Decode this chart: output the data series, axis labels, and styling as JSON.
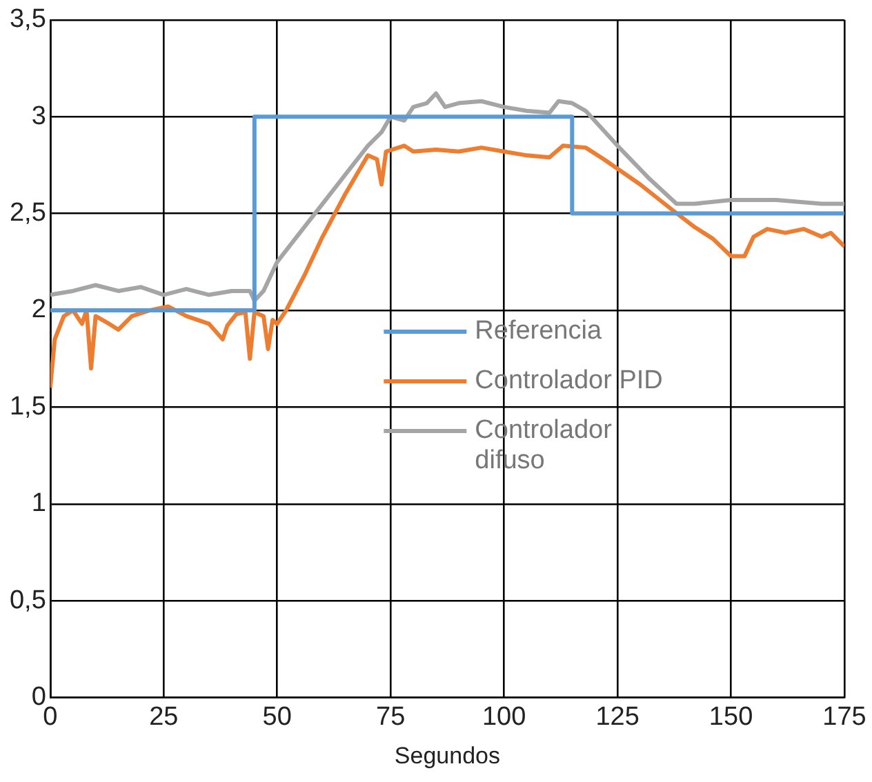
{
  "chart_data": {
    "type": "line",
    "xlabel": "Segundos",
    "xlim": [
      0,
      175
    ],
    "xticks": [
      0,
      25,
      50,
      75,
      100,
      125,
      150,
      175
    ],
    "ylim": [
      0,
      3.5
    ],
    "yticks": [
      0,
      {
        "value": 0.5,
        "label": "0,5"
      },
      1,
      {
        "value": 1.5,
        "label": "1,5"
      },
      2,
      {
        "value": 2.5,
        "label": "2,5"
      },
      3,
      {
        "value": 3.5,
        "label": "3,5"
      }
    ],
    "grid": true,
    "legend": "right",
    "marker": "none",
    "line_style": "solid",
    "series": [
      {
        "name": "Referencia",
        "color": "#5b9bd5",
        "x": [
          0,
          45,
          45,
          115,
          115,
          175
        ],
        "values": [
          2,
          2,
          3,
          3,
          2.5,
          2.5
        ]
      },
      {
        "name": "Controlador PID",
        "color": "#ed7d31",
        "x": [
          0,
          1,
          3,
          5,
          7,
          8,
          9,
          10,
          13,
          15,
          18,
          22,
          26,
          30,
          35,
          38,
          39,
          41,
          43,
          44,
          45,
          47,
          48,
          49,
          50,
          52,
          56,
          60,
          65,
          68,
          70,
          72,
          73,
          74,
          78,
          80,
          85,
          90,
          95,
          100,
          105,
          110,
          113,
          118,
          122,
          130,
          137,
          142,
          146,
          150,
          153,
          155,
          158,
          162,
          166,
          170,
          172,
          175
        ],
        "values": [
          1.6,
          1.85,
          1.97,
          2.0,
          1.93,
          2.0,
          1.7,
          1.97,
          1.93,
          1.9,
          1.97,
          2.0,
          2.02,
          1.97,
          1.93,
          1.85,
          1.92,
          1.98,
          1.99,
          1.75,
          1.99,
          1.97,
          1.8,
          1.95,
          1.93,
          2.0,
          2.18,
          2.38,
          2.6,
          2.72,
          2.8,
          2.78,
          2.65,
          2.82,
          2.85,
          2.82,
          2.83,
          2.82,
          2.84,
          2.82,
          2.8,
          2.79,
          2.85,
          2.84,
          2.78,
          2.65,
          2.52,
          2.43,
          2.37,
          2.28,
          2.28,
          2.38,
          2.42,
          2.4,
          2.42,
          2.38,
          2.4,
          2.33
        ]
      },
      {
        "name": "Controlador difuso",
        "color": "#a5a5a5",
        "x": [
          0,
          5,
          10,
          15,
          20,
          25,
          30,
          35,
          40,
          44,
          45,
          47,
          50,
          55,
          60,
          65,
          70,
          73,
          75,
          78,
          80,
          83,
          85,
          87,
          90,
          95,
          100,
          105,
          110,
          112,
          115,
          118,
          125,
          132,
          138,
          142,
          150,
          160,
          165,
          170,
          175
        ],
        "values": [
          2.08,
          2.1,
          2.13,
          2.1,
          2.12,
          2.08,
          2.11,
          2.08,
          2.1,
          2.1,
          2.05,
          2.1,
          2.25,
          2.4,
          2.55,
          2.7,
          2.85,
          2.92,
          3.0,
          2.98,
          3.05,
          3.07,
          3.12,
          3.05,
          3.07,
          3.08,
          3.05,
          3.03,
          3.02,
          3.08,
          3.07,
          3.03,
          2.85,
          2.68,
          2.55,
          2.55,
          2.57,
          2.57,
          2.56,
          2.55,
          2.55
        ]
      }
    ]
  }
}
